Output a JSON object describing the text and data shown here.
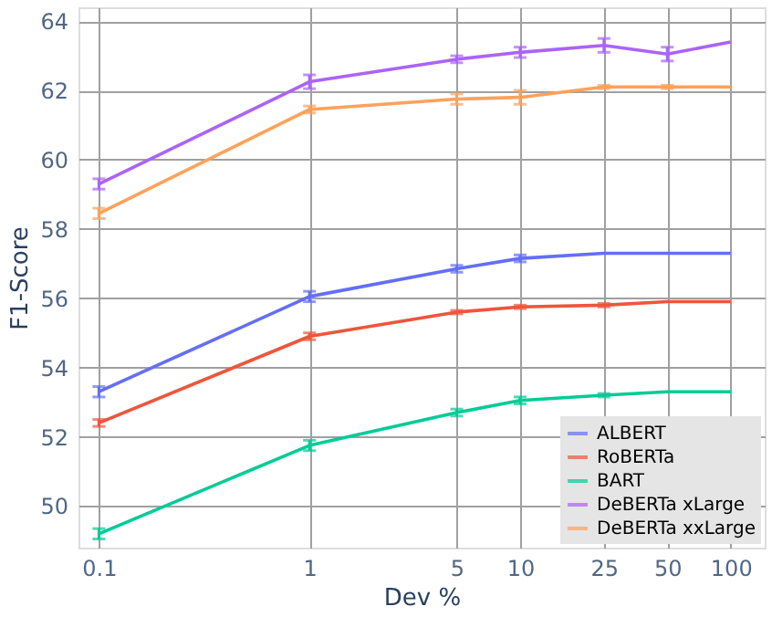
{
  "chart_data": {
    "type": "line",
    "xlabel": "Dev %",
    "ylabel": "F1-Score",
    "x": [
      0.1,
      1,
      5,
      10,
      25,
      50,
      100
    ],
    "xlim": [
      0.08,
      145
    ],
    "xticks": [
      0.1,
      1,
      5,
      10,
      25,
      50,
      100
    ],
    "log": "x",
    "ylim": [
      48.8,
      64.4
    ],
    "yticks": [
      50,
      52,
      54,
      56,
      58,
      60,
      62,
      64
    ],
    "grid": true,
    "legend": "bottom right",
    "marker": "none",
    "line_style": "solid",
    "series": [
      {
        "name": "ALBERT",
        "color": "#636efa",
        "values": [
          53.3,
          56.05,
          56.85,
          57.15,
          57.3,
          57.3,
          57.3
        ],
        "errors": [
          0.15,
          0.15,
          0.1,
          0.1,
          null,
          null,
          null
        ]
      },
      {
        "name": "RoBERTa",
        "color": "#ef553b",
        "values": [
          52.4,
          54.9,
          55.6,
          55.75,
          55.8,
          55.9,
          55.9
        ],
        "errors": [
          0.1,
          0.1,
          0.05,
          0.05,
          0.05,
          null,
          null
        ]
      },
      {
        "name": "BART",
        "color": "#00cc96",
        "values": [
          49.2,
          51.75,
          52.7,
          53.05,
          53.2,
          53.3,
          53.3
        ],
        "errors": [
          0.15,
          0.15,
          0.1,
          0.1,
          0.05,
          null,
          null
        ]
      },
      {
        "name": "DeBERTa xLarge",
        "color": "#ab63fa",
        "values": [
          59.3,
          62.25,
          62.9,
          63.1,
          63.3,
          63.05,
          63.4
        ],
        "errors": [
          0.15,
          0.2,
          0.1,
          0.15,
          0.2,
          0.2,
          null
        ]
      },
      {
        "name": "DeBERTa xxLarge",
        "color": "#ffa15a",
        "values": [
          58.45,
          61.45,
          61.75,
          61.8,
          62.1,
          62.1,
          62.1
        ],
        "errors": [
          0.15,
          0.1,
          0.15,
          0.2,
          0.05,
          0.05,
          null
        ]
      }
    ]
  }
}
